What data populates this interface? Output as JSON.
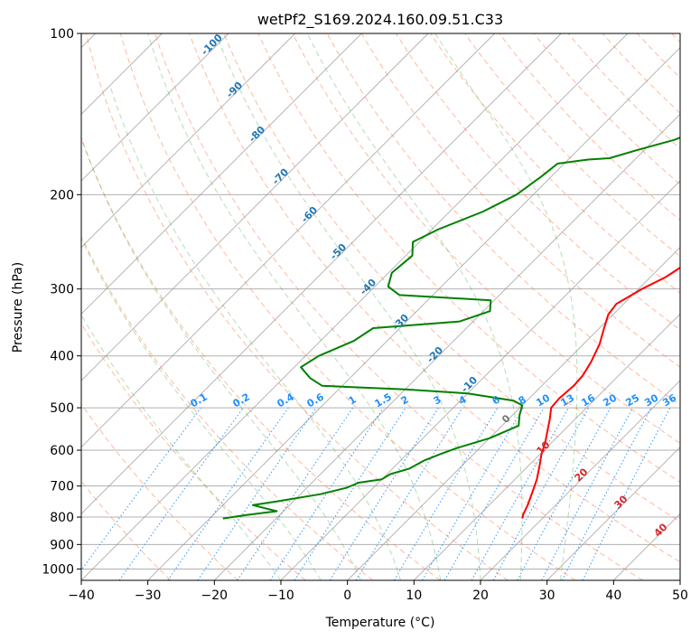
{
  "chart_data": {
    "type": "line",
    "title": "wetPf2_S169.2024.160.09.51.C33",
    "xlabel": "Temperature (°C)",
    "ylabel": "Pressure (hPa)",
    "xlim": [
      -40,
      50
    ],
    "ylim": [
      1050,
      100
    ],
    "y_scale": "log",
    "grid": true,
    "x_ticks": [
      "−40",
      "−30",
      "−20",
      "−10",
      "0",
      "10",
      "20",
      "30",
      "40",
      "50"
    ],
    "x_tick_values": [
      -40,
      -30,
      -20,
      -10,
      0,
      10,
      20,
      30,
      40,
      50
    ],
    "y_ticks": [
      "100",
      "200",
      "300",
      "400",
      "500",
      "600",
      "700",
      "800",
      "900",
      "1000"
    ],
    "y_tick_values": [
      100,
      200,
      300,
      400,
      500,
      600,
      700,
      800,
      900,
      1000
    ],
    "series": [
      {
        "role": "temperature",
        "color": "#ff0000",
        "points": [
          [
            17.0,
            805
          ],
          [
            16.5,
            790
          ],
          [
            15.8,
            760
          ],
          [
            14.6,
            720
          ],
          [
            13.3,
            680
          ],
          [
            11.6,
            640
          ],
          [
            10.2,
            610
          ],
          [
            9.0,
            580
          ],
          [
            7.5,
            550
          ],
          [
            6.2,
            525
          ],
          [
            4.7,
            500
          ],
          [
            4.5,
            480
          ],
          [
            4.8,
            455
          ],
          [
            4.6,
            435
          ],
          [
            3.8,
            410
          ],
          [
            2.4,
            380
          ],
          [
            0.7,
            355
          ],
          [
            -0.7,
            335
          ],
          [
            -1.1,
            320
          ],
          [
            0.5,
            300
          ],
          [
            2.3,
            285
          ],
          [
            3.3,
            270
          ],
          [
            3.6,
            255
          ],
          [
            4.6,
            240
          ],
          [
            6.8,
            228
          ],
          [
            9.0,
            220
          ],
          [
            10.4,
            210
          ],
          [
            11.2,
            198
          ],
          [
            11.9,
            185
          ],
          [
            12.3,
            175
          ],
          [
            13.2,
            165
          ],
          [
            14.5,
            152
          ],
          [
            16.0,
            138
          ],
          [
            17.5,
            125
          ],
          [
            18.3,
            115
          ],
          [
            19.1,
            106
          ],
          [
            19.7,
            100
          ]
        ]
      },
      {
        "role": "dewpoint",
        "color": "#008000",
        "points": [
          [
            -28,
            805
          ],
          [
            -25,
            793
          ],
          [
            -21,
            780
          ],
          [
            -25.5,
            760
          ],
          [
            -22.5,
            748
          ],
          [
            -17,
            725
          ],
          [
            -14,
            705
          ],
          [
            -13,
            690
          ],
          [
            -10,
            680
          ],
          [
            -9.5,
            665
          ],
          [
            -7.5,
            650
          ],
          [
            -6.5,
            628
          ],
          [
            -5,
            610
          ],
          [
            -3.5,
            595
          ],
          [
            0,
            570
          ],
          [
            2.5,
            540
          ],
          [
            1.0,
            515
          ],
          [
            0,
            495
          ],
          [
            -2,
            485
          ],
          [
            -10,
            470
          ],
          [
            -20,
            462
          ],
          [
            -33,
            455
          ],
          [
            -36,
            440
          ],
          [
            -39,
            420
          ],
          [
            -38,
            400
          ],
          [
            -35,
            375
          ],
          [
            -34,
            355
          ],
          [
            -22,
            345
          ],
          [
            -19,
            330
          ],
          [
            -20.5,
            315
          ],
          [
            -35,
            308
          ],
          [
            -38,
            297
          ],
          [
            -39.5,
            280
          ],
          [
            -39,
            260
          ],
          [
            -41,
            245
          ],
          [
            -39,
            232
          ],
          [
            -35,
            215
          ],
          [
            -32.5,
            200
          ],
          [
            -31.5,
            185
          ],
          [
            -31,
            175
          ],
          [
            -27,
            172
          ],
          [
            -24,
            171
          ],
          [
            -21,
            165
          ],
          [
            -17,
            158
          ],
          [
            -15,
            152
          ],
          [
            -12,
            145
          ],
          [
            -11.5,
            138
          ],
          [
            -10,
            132
          ],
          [
            -8,
            125
          ],
          [
            -6.5,
            119
          ],
          [
            -5.5,
            113
          ],
          [
            -4,
            108
          ],
          [
            -2,
            103
          ],
          [
            0,
            100
          ]
        ]
      }
    ],
    "isotherm_labels": [
      "-100",
      "-90",
      "-80",
      "-70",
      "-60",
      "-50",
      "-40",
      "-30",
      "-20",
      "-10"
    ],
    "mixing_ratio_labels": [
      "0.1",
      "0.2",
      "0.4",
      "0.6",
      "1",
      "1.5",
      "2",
      "3",
      "4",
      "6",
      "8",
      "10",
      "13",
      "16",
      "20",
      "25",
      "30",
      "36"
    ],
    "dry_adiabat_labels": [
      "0",
      "10",
      "20",
      "30",
      "40"
    ],
    "colors": {
      "isotherm_label": "#1f77b4",
      "mixing_ratio": "#1e90ff",
      "dry_adiabat": "#ff7f50",
      "dry_adiabat_label": "#d62728",
      "moist_adiabat": "#2ca02c",
      "grid": "#b0b0b0",
      "isotherm_line": "#999999"
    }
  }
}
